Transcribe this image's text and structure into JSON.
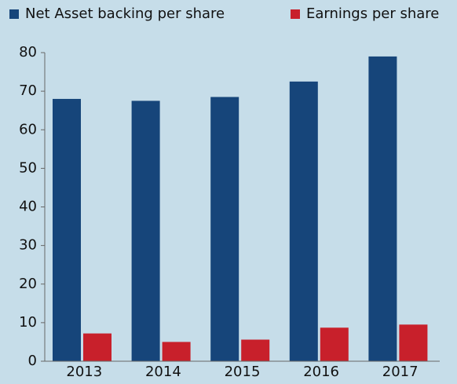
{
  "chart_data": {
    "type": "bar",
    "categories": [
      "2013",
      "2014",
      "2015",
      "2016",
      "2017"
    ],
    "series": [
      {
        "name": "Net Asset backing per share",
        "color": "#16457a",
        "values": [
          68,
          67.5,
          68.5,
          72.5,
          79
        ]
      },
      {
        "name": "Earnings per share",
        "color": "#c8202b",
        "values": [
          7.2,
          5,
          5.6,
          8.7,
          9.5
        ]
      }
    ],
    "ylim": [
      0,
      80
    ],
    "yticks": [
      0,
      10,
      20,
      30,
      40,
      50,
      60,
      70,
      80
    ],
    "legend": "top"
  }
}
